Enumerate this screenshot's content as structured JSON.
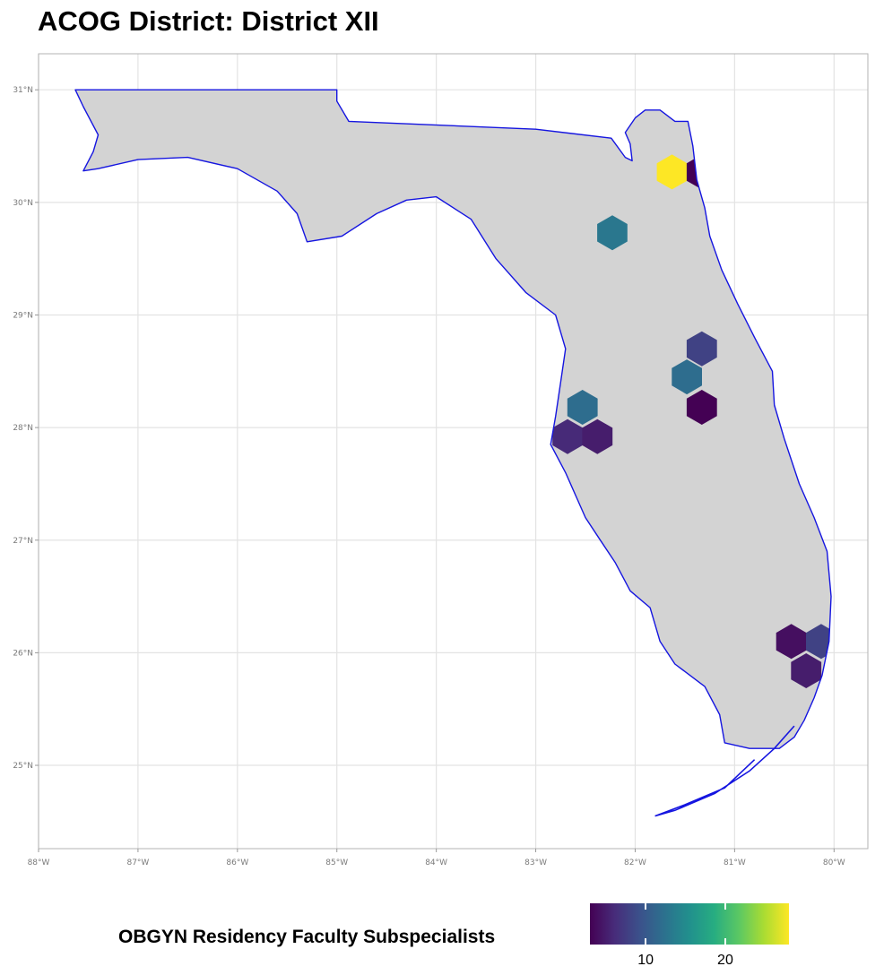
{
  "title": "ACOG District: District XII",
  "axes": {
    "lon_ticks": [
      {
        "value": -88,
        "label": "88°W"
      },
      {
        "value": -87,
        "label": "87°W"
      },
      {
        "value": -86,
        "label": "86°W"
      },
      {
        "value": -85,
        "label": "85°W"
      },
      {
        "value": -84,
        "label": "84°W"
      },
      {
        "value": -83,
        "label": "83°W"
      },
      {
        "value": -82,
        "label": "82°W"
      },
      {
        "value": -81,
        "label": "81°W"
      },
      {
        "value": -80,
        "label": "80°W"
      }
    ],
    "lat_ticks": [
      {
        "value": 31,
        "label": "31°N"
      },
      {
        "value": 30,
        "label": "30°N"
      },
      {
        "value": 29,
        "label": "29°N"
      },
      {
        "value": 28,
        "label": "28°N"
      },
      {
        "value": 27,
        "label": "27°N"
      },
      {
        "value": 26,
        "label": "26°N"
      },
      {
        "value": 25,
        "label": "25°N"
      }
    ],
    "lon_range": [
      -88,
      -79.66
    ],
    "lat_range": [
      24.26,
      31.32
    ],
    "grid": true
  },
  "legend": {
    "title": "OBGYN Residency Faculty Subspecialists",
    "tick_values": [
      10,
      20
    ],
    "tick_labels": [
      "10",
      "20"
    ],
    "range": [
      3,
      28
    ],
    "placement": "bottom",
    "colormap": "viridis"
  },
  "colors": {
    "state_fill": "#d3d3d3",
    "state_outline": "#1515e0",
    "grid": "#e3e3e3",
    "panel_border": "#b3b3b3"
  },
  "chart_data": {
    "type": "heatmap",
    "variant": "hexbin map",
    "region": "Florida",
    "value_name": "OBGYN Residency Faculty Subspecialists",
    "hexagons": [
      {
        "lon": -81.63,
        "lat": 30.27,
        "value": 28
      },
      {
        "lon": -81.33,
        "lat": 30.27,
        "value": 3
      },
      {
        "lon": -82.23,
        "lat": 29.73,
        "value": 13
      },
      {
        "lon": -81.33,
        "lat": 28.7,
        "value": 8
      },
      {
        "lon": -81.48,
        "lat": 28.45,
        "value": 12
      },
      {
        "lon": -81.33,
        "lat": 28.18,
        "value": 3
      },
      {
        "lon": -82.53,
        "lat": 28.18,
        "value": 12
      },
      {
        "lon": -82.68,
        "lat": 27.92,
        "value": 6
      },
      {
        "lon": -82.38,
        "lat": 27.92,
        "value": 5
      },
      {
        "lon": -80.43,
        "lat": 26.1,
        "value": 4
      },
      {
        "lon": -80.13,
        "lat": 26.1,
        "value": 8
      },
      {
        "lon": -80.28,
        "lat": 25.84,
        "value": 5
      }
    ]
  }
}
